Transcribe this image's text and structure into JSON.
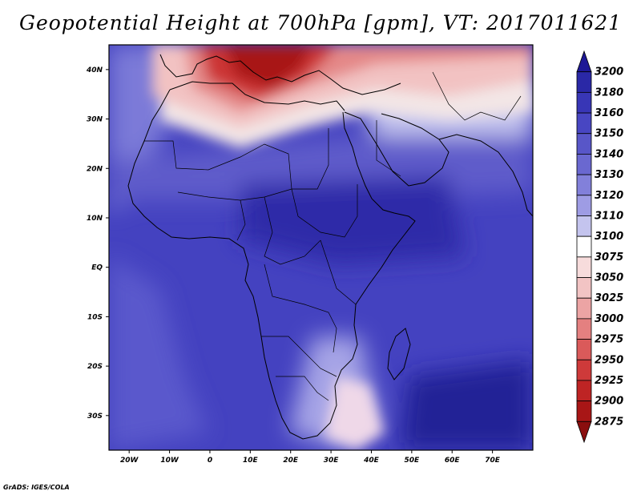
{
  "title": "Geopotential Height at 700hPa [gpm], VT: 2017011621",
  "credit": "GrADS: IGES/COLA",
  "map": {
    "lon_range": [
      -25,
      80
    ],
    "lat_range": [
      -37,
      45
    ],
    "lat_ticks": [
      {
        "value": 40,
        "label": "40N"
      },
      {
        "value": 30,
        "label": "30N"
      },
      {
        "value": 20,
        "label": "20N"
      },
      {
        "value": 10,
        "label": "10N"
      },
      {
        "value": 0,
        "label": "EQ"
      },
      {
        "value": -10,
        "label": "10S"
      },
      {
        "value": -20,
        "label": "20S"
      },
      {
        "value": -30,
        "label": "30S"
      }
    ],
    "lon_ticks": [
      {
        "value": -20,
        "label": "20W"
      },
      {
        "value": -10,
        "label": "10W"
      },
      {
        "value": 0,
        "label": "0"
      },
      {
        "value": 10,
        "label": "10E"
      },
      {
        "value": 20,
        "label": "20E"
      },
      {
        "value": 30,
        "label": "30E"
      },
      {
        "value": 40,
        "label": "40E"
      },
      {
        "value": 50,
        "label": "50E"
      },
      {
        "value": 60,
        "label": "60E"
      },
      {
        "value": 70,
        "label": "70E"
      }
    ]
  },
  "colorbar": {
    "levels": [
      "3200",
      "3180",
      "3160",
      "3150",
      "3140",
      "3130",
      "3120",
      "3110",
      "3100",
      "3075",
      "3050",
      "3025",
      "3000",
      "2975",
      "2950",
      "2925",
      "2900",
      "2875"
    ],
    "colors": [
      "#1e1896",
      "#2a28a6",
      "#3836b6",
      "#4846c2",
      "#5856c8",
      "#6a68d0",
      "#8280da",
      "#9e9ce4",
      "#c4c4ee",
      "#ffffff",
      "#f7dcdc",
      "#f2c4c4",
      "#eca4a4",
      "#e48080",
      "#da5a5a",
      "#ce3a3a",
      "#be2424",
      "#a81616",
      "#8a0e0e"
    ]
  }
}
